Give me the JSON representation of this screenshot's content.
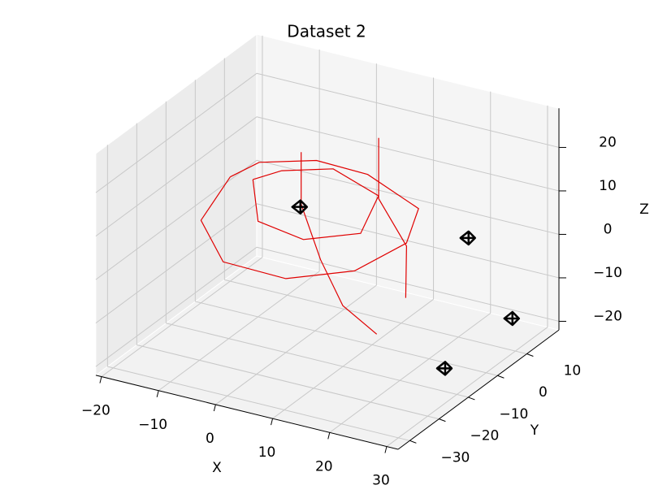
{
  "chart_data": {
    "type": "line3d",
    "title": "Dataset 2",
    "xlabel": "X",
    "ylabel": "Y",
    "zlabel": "Z",
    "xlim": [
      -21,
      32
    ],
    "ylim": [
      -34,
      21
    ],
    "zlim": [
      -22,
      29
    ],
    "xticks": [
      {
        "value": -20,
        "label": "−20"
      },
      {
        "value": -10,
        "label": "−10"
      },
      0,
      10,
      20,
      30
    ],
    "yticks": [
      {
        "value": -30,
        "label": "−30"
      },
      {
        "value": -20,
        "label": "−20"
      },
      {
        "value": -10,
        "label": "−10"
      },
      0,
      10
    ],
    "zticks": [
      {
        "value": -20,
        "label": "−20"
      },
      {
        "value": -10,
        "label": "−10"
      },
      0,
      10,
      20
    ],
    "grid": true,
    "series": [
      {
        "color": "#e00000",
        "x": [
          -20,
          -20,
          -12,
          0,
          10,
          15,
          12,
          0,
          -10,
          -18,
          -20
        ],
        "y": [
          10,
          0,
          -8,
          -10,
          -6,
          2,
          12,
          18,
          20,
          16,
          10
        ],
        "z": [
          2,
          -3,
          -6,
          -5,
          -2,
          2,
          4,
          5,
          4,
          3,
          2
        ]
      },
      {
        "color": "#e00000",
        "x": [
          -15,
          -10,
          0,
          8,
          6,
          -4,
          -12,
          -15
        ],
        "y": [
          8,
          0,
          -4,
          0,
          10,
          14,
          12,
          8
        ],
        "z": [
          4,
          0,
          1,
          3,
          6,
          7,
          5,
          4
        ]
      },
      {
        "color": "#e00000",
        "x": [
          -5,
          -5,
          2,
          10,
          18
        ],
        "y": [
          5,
          5,
          -2,
          -10,
          -14
        ],
        "z": [
          15,
          3,
          -4,
          -8,
          -10
        ]
      },
      {
        "color": "#e00000",
        "x": [
          5,
          5,
          14,
          20
        ],
        "y": [
          12,
          12,
          4,
          -8
        ],
        "z": [
          18,
          4,
          0,
          -4
        ]
      }
    ],
    "cameras": {
      "color": "#000000",
      "x": [
        0,
        30,
        30,
        30
      ],
      "y": [
        -5,
        -6,
        9,
        -14
      ],
      "z": [
        9,
        12,
        -14,
        -14
      ]
    }
  }
}
